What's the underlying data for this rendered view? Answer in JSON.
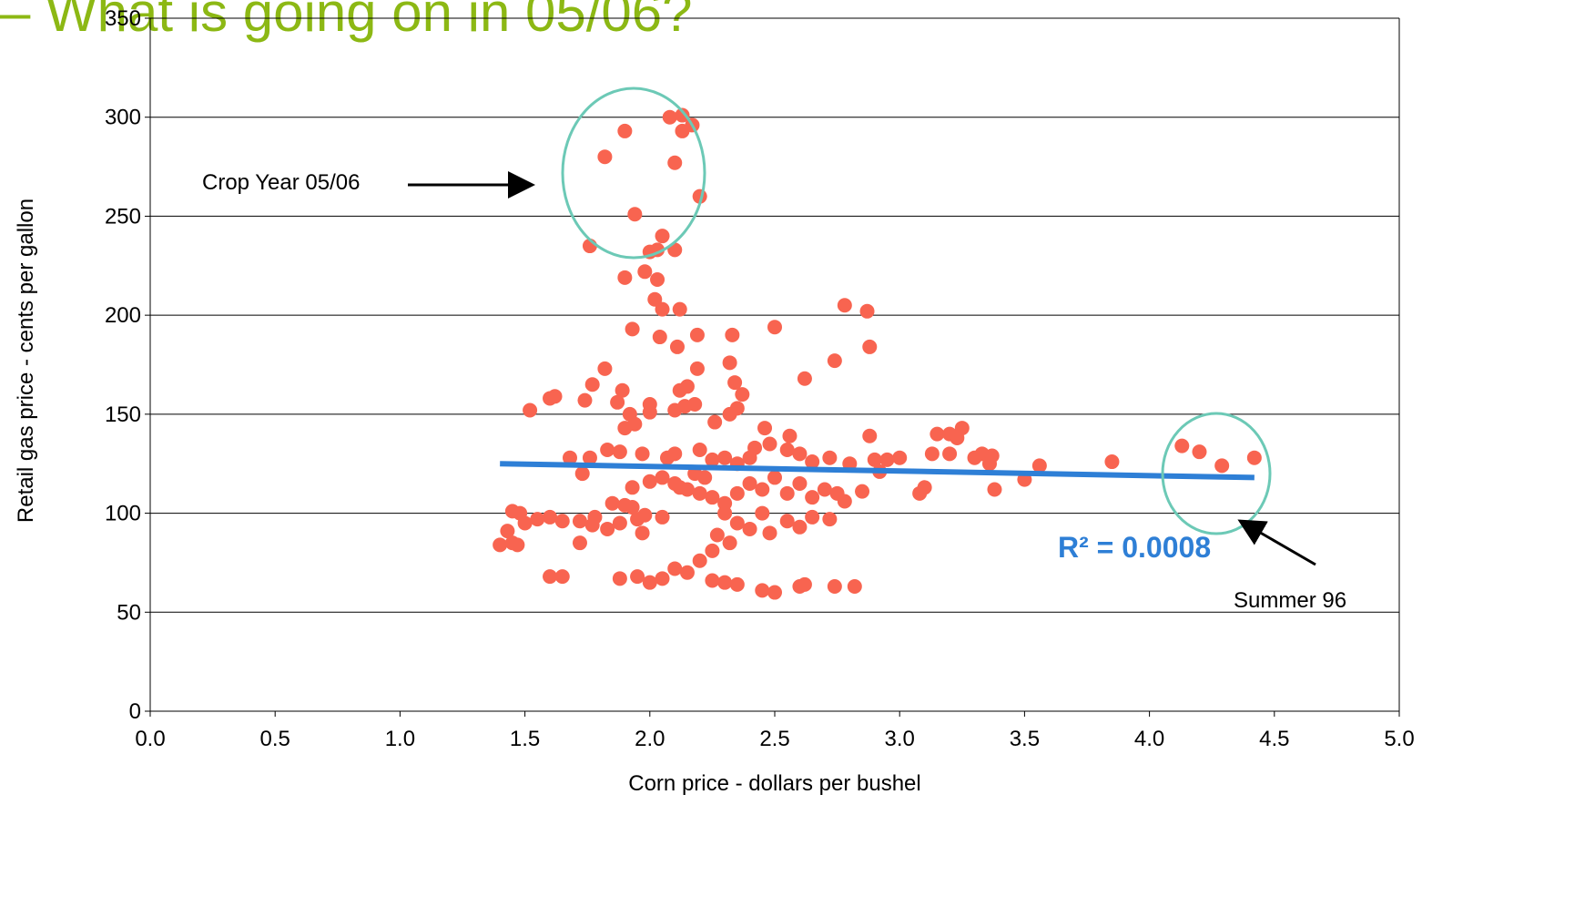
{
  "chart_data": {
    "type": "scatter",
    "title": "– What is going on in 05/06?",
    "xlabel": "Corn price - dollars per bushel",
    "ylabel": "Retail gas price - cents per gallon",
    "xlim": [
      0,
      5
    ],
    "ylim": [
      0,
      350
    ],
    "xticks": [
      {
        "value": 0,
        "label": "0.0"
      },
      0.5,
      {
        "value": 1,
        "label": "1.0"
      },
      1.5,
      {
        "value": 2,
        "label": "2.0"
      },
      2.5,
      {
        "value": 3,
        "label": "3.0"
      },
      3.5,
      {
        "value": 4,
        "label": "4.0"
      },
      4.5,
      {
        "value": 5,
        "label": "5.0"
      }
    ],
    "yticks": [
      0,
      50,
      100,
      150,
      200,
      250,
      300,
      350
    ],
    "grid": true,
    "series": [
      {
        "color": "#f86450",
        "x": [
          1.82,
          1.9,
          2.08,
          2.13,
          2.13,
          2.17,
          2.1,
          2.2,
          1.94,
          1.76,
          2.05,
          2.0,
          2.03,
          2.1,
          1.9,
          1.98,
          2.03,
          2.02,
          2.05,
          2.12,
          1.93,
          2.04,
          2.11,
          2.19,
          2.33,
          2.5,
          2.78,
          2.87,
          2.88,
          2.74,
          2.19,
          2.32,
          2.34,
          2.62,
          1.82,
          1.77,
          1.74,
          1.62,
          1.6,
          1.52,
          1.89,
          1.87,
          2.12,
          2.15,
          2.18,
          2.37,
          2.0,
          2.0,
          1.92,
          1.94,
          1.9,
          2.1,
          2.14,
          2.26,
          2.32,
          2.35,
          2.46,
          2.56,
          2.88,
          3.15,
          3.2,
          3.25,
          3.23,
          3.13,
          3.2,
          3.33,
          3.37,
          3.3,
          3.36,
          3.0,
          2.95,
          2.9,
          2.8,
          2.72,
          2.65,
          2.6,
          2.55,
          2.48,
          2.42,
          2.4,
          2.35,
          2.3,
          2.25,
          2.2,
          2.1,
          2.07,
          1.97,
          1.88,
          1.83,
          1.76,
          1.68,
          1.73,
          2.0,
          2.05,
          2.1,
          2.15,
          2.2,
          2.25,
          2.3,
          2.35,
          2.4,
          2.45,
          2.5,
          2.55,
          2.6,
          2.65,
          2.7,
          2.75,
          2.85,
          2.92,
          3.1,
          3.08,
          3.38,
          3.5,
          3.56,
          3.85,
          4.13,
          4.2,
          4.29,
          4.42,
          2.3,
          2.35,
          2.4,
          2.45,
          2.55,
          2.6,
          2.65,
          2.72,
          2.78,
          2.48,
          2.32,
          2.27,
          2.25,
          2.2,
          2.15,
          2.1,
          2.05,
          2.0,
          1.95,
          1.88,
          1.65,
          1.6,
          2.25,
          2.3,
          2.35,
          2.45,
          2.5,
          2.6,
          2.62,
          2.74,
          2.82,
          1.83,
          1.88,
          1.77,
          1.72,
          1.65,
          1.6,
          1.55,
          1.5,
          1.48,
          1.45,
          1.43,
          1.45,
          1.47,
          1.4,
          1.72,
          1.85,
          1.9,
          1.93,
          1.97,
          1.98,
          2.05,
          1.95,
          1.93,
          2.12,
          2.18,
          2.22,
          1.78
        ],
        "y": [
          280,
          293,
          300,
          301,
          293,
          296,
          277,
          260,
          251,
          235,
          240,
          232,
          233,
          233,
          219,
          222,
          218,
          208,
          203,
          203,
          193,
          189,
          184,
          190,
          190,
          194,
          205,
          202,
          184,
          177,
          173,
          176,
          166,
          168,
          173,
          165,
          157,
          159,
          158,
          152,
          162,
          156,
          162,
          164,
          155,
          160,
          155,
          151,
          150,
          145,
          143,
          152,
          154,
          146,
          150,
          153,
          143,
          139,
          139,
          140,
          140,
          143,
          138,
          130,
          130,
          130,
          129,
          128,
          125,
          128,
          127,
          127,
          125,
          128,
          126,
          130,
          132,
          135,
          133,
          128,
          125,
          128,
          127,
          132,
          130,
          128,
          130,
          131,
          132,
          128,
          128,
          120,
          116,
          118,
          115,
          112,
          110,
          108,
          105,
          110,
          115,
          112,
          118,
          110,
          115,
          108,
          112,
          110,
          111,
          121,
          113,
          110,
          112,
          117,
          124,
          126,
          134,
          131,
          124,
          128,
          100,
          95,
          92,
          100,
          96,
          93,
          98,
          97,
          106,
          90,
          85,
          89,
          81,
          76,
          70,
          72,
          67,
          65,
          68,
          67,
          68,
          68,
          66,
          65,
          64,
          61,
          60,
          63,
          64,
          63,
          63,
          92,
          95,
          94,
          96,
          96,
          98,
          97,
          95,
          100,
          101,
          91,
          85,
          84,
          84,
          85,
          105,
          104,
          103,
          90,
          99,
          98,
          97,
          113,
          113,
          120,
          118,
          98
        ]
      }
    ],
    "trendline": {
      "color": "#2e7fd6",
      "x": [
        1.4,
        4.42
      ],
      "y": [
        125,
        118
      ]
    },
    "annotations": [
      {
        "text": "Crop Year 05/06"
      },
      {
        "text": "R² = 0.0008"
      },
      {
        "text": "Summer 96"
      }
    ]
  }
}
